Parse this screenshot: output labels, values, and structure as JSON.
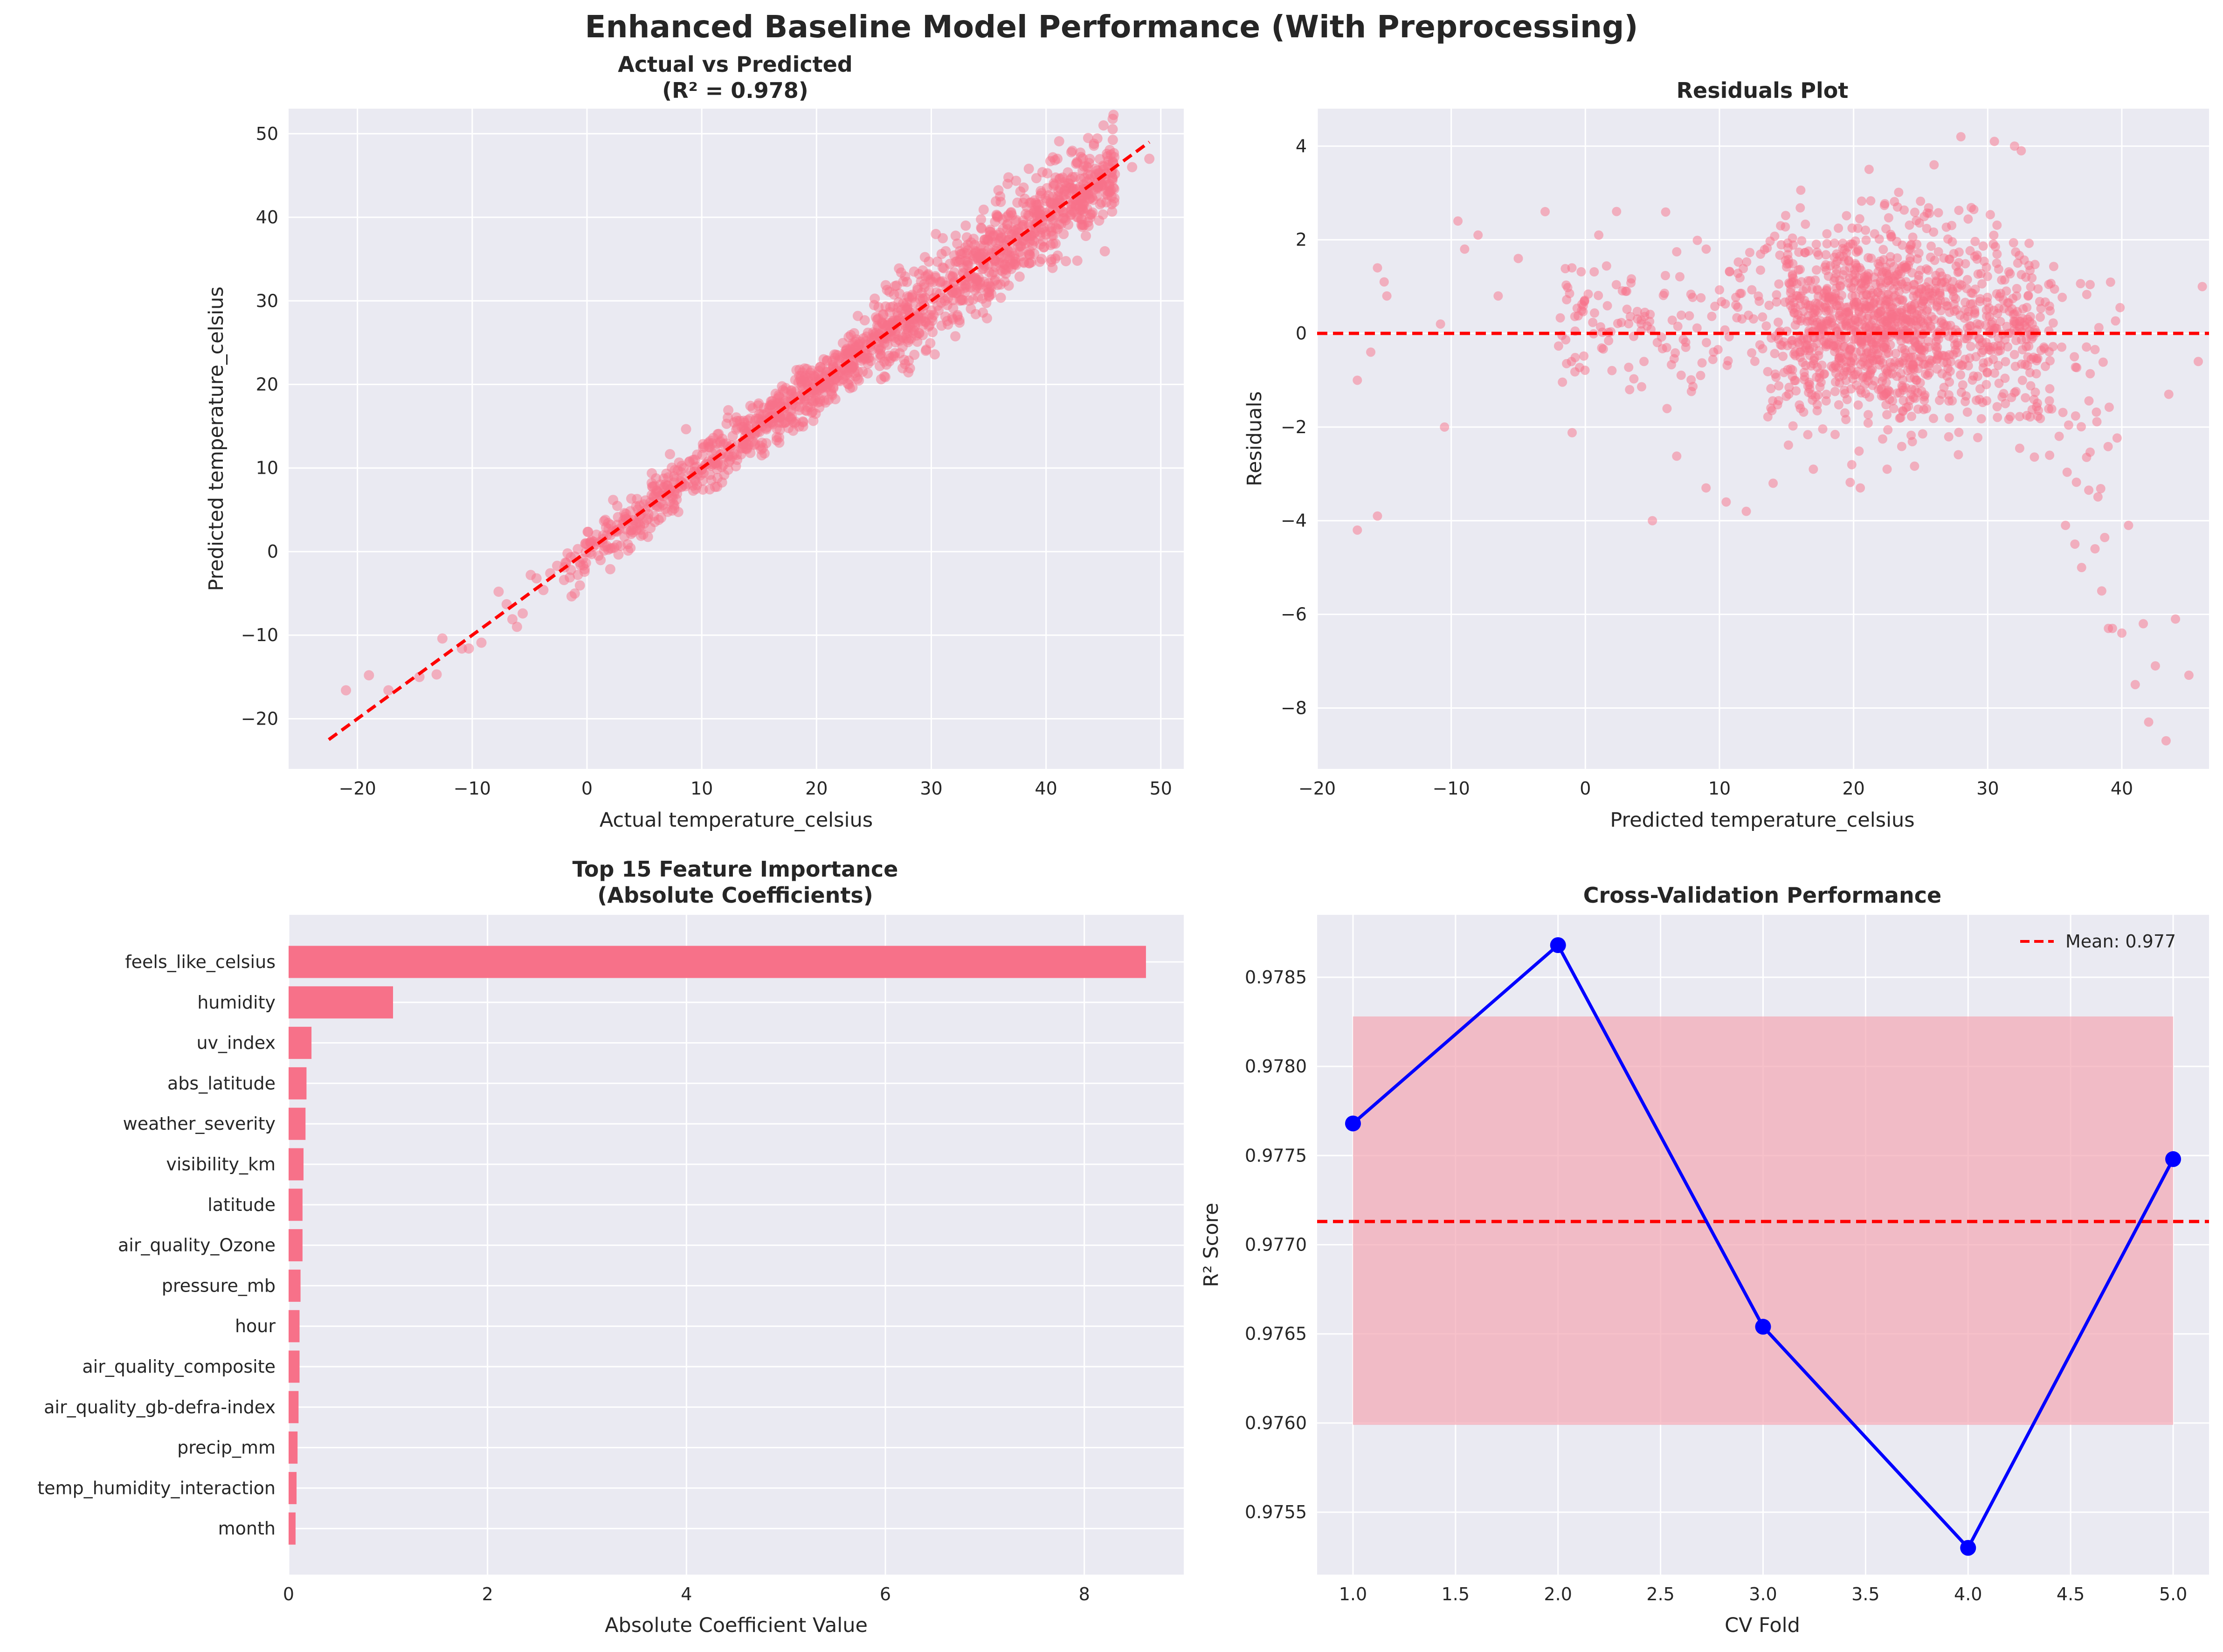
{
  "figure": {
    "suptitle": "Enhanced Baseline Model Performance (With Preprocessing)"
  },
  "colors": {
    "background": "#eaeaf2",
    "grid": "#ffffff",
    "points": "#f77189",
    "bars": "#f77189",
    "reference_line": "#ff0000",
    "cv_line": "#0000ff",
    "band": "#f4a7b4"
  },
  "chart_data": [
    {
      "id": "actual_vs_predicted",
      "type": "scatter",
      "title_line1": "Actual vs Predicted",
      "title_line2": "(R² = 0.978)",
      "xlabel": "Actual temperature_celsius",
      "ylabel": "Predicted temperature_celsius",
      "xlim": [
        -26,
        52
      ],
      "ylim": [
        -26,
        53
      ],
      "xticks": [
        -20,
        -10,
        0,
        10,
        20,
        30,
        40,
        50
      ],
      "yticks": [
        -20,
        -10,
        0,
        10,
        20,
        30,
        40,
        50
      ],
      "r2": 0.978,
      "reference_line": {
        "from": [
          -22.5,
          -22.5
        ],
        "to": [
          49,
          49
        ],
        "style": "dashed"
      },
      "points": [
        [
          -21,
          -16.6
        ],
        [
          -19,
          -14.8
        ],
        [
          -17.3,
          -16.6
        ],
        [
          -14.6,
          -15
        ],
        [
          -13.1,
          -14.7
        ],
        [
          -12.6,
          -10.4
        ],
        [
          -10.9,
          -11.6
        ],
        [
          -10.3,
          -11.6
        ],
        [
          -9.2,
          -10.9
        ],
        [
          -7.7,
          -4.8
        ],
        [
          -7,
          -6.3
        ],
        [
          -6.5,
          -8.1
        ],
        [
          -6.1,
          -9
        ],
        [
          -5.6,
          -7.4
        ],
        [
          -4.9,
          -2.8
        ],
        [
          -4.4,
          -3.2
        ],
        [
          -3.8,
          -4.6
        ],
        [
          -3.2,
          -2.6
        ],
        [
          -2.6,
          -1.7
        ],
        [
          -2,
          -3.4
        ],
        [
          -1.4,
          -2.2
        ],
        [
          -0.8,
          0.3
        ],
        [
          -0.2,
          -2.1
        ],
        [
          0.4,
          1.3
        ],
        [
          1,
          -0.5
        ],
        [
          1.6,
          3.8
        ],
        [
          2.2,
          2.4
        ],
        [
          2.8,
          2.7
        ],
        [
          3.4,
          4.5
        ],
        [
          4,
          2.3
        ],
        [
          4.6,
          5.5
        ],
        [
          5.2,
          3.8
        ],
        [
          5.8,
          6.6
        ],
        [
          6.4,
          5.8
        ],
        [
          7,
          7.9
        ],
        [
          7.6,
          6.9
        ],
        [
          8.2,
          9.5
        ],
        [
          8.8,
          8.1
        ],
        [
          9.4,
          11
        ],
        [
          10,
          9.8
        ],
        [
          10.6,
          12.5
        ],
        [
          11.2,
          10.6
        ],
        [
          11.8,
          13.5
        ],
        [
          12.4,
          12.3
        ],
        [
          13,
          14.6
        ],
        [
          13.6,
          13.2
        ],
        [
          14.2,
          15.9
        ],
        [
          14.8,
          14.9
        ],
        [
          15.4,
          17.2
        ],
        [
          16,
          15.5
        ],
        [
          16.6,
          18.3
        ],
        [
          17.2,
          17.3
        ],
        [
          17.8,
          19.2
        ],
        [
          18.4,
          18.1
        ],
        [
          19,
          20.3
        ],
        [
          19.6,
          19.4
        ],
        [
          20.2,
          21.6
        ],
        [
          20.8,
          20.3
        ],
        [
          21.4,
          22.8
        ],
        [
          22,
          21.5
        ],
        [
          22.6,
          24.1
        ],
        [
          23.2,
          22.6
        ],
        [
          23.8,
          25.1
        ],
        [
          24.4,
          23.6
        ],
        [
          25,
          26
        ],
        [
          25.6,
          24.3
        ],
        [
          26.2,
          27.4
        ],
        [
          26.8,
          25.6
        ],
        [
          27.4,
          28.9
        ],
        [
          28,
          26.5
        ],
        [
          28.6,
          29.8
        ],
        [
          29.2,
          27.6
        ],
        [
          29.8,
          31.2
        ],
        [
          30.2,
          28.3
        ],
        [
          30.8,
          32.3
        ],
        [
          31.4,
          29.5
        ],
        [
          32,
          33.4
        ],
        [
          32.6,
          30.1
        ],
        [
          33.2,
          34.6
        ],
        [
          33.8,
          31.3
        ],
        [
          34.4,
          35.7
        ],
        [
          35,
          32.1
        ],
        [
          35.6,
          37
        ],
        [
          36.2,
          33.5
        ],
        [
          36.8,
          38
        ],
        [
          37.4,
          34.3
        ],
        [
          38,
          39.6
        ],
        [
          38.6,
          35.5
        ],
        [
          39.2,
          40.7
        ],
        [
          39.8,
          36.4
        ],
        [
          40.4,
          41.8
        ],
        [
          41,
          38.6
        ],
        [
          41.6,
          43.2
        ],
        [
          42.2,
          40.9
        ],
        [
          43,
          44.6
        ],
        [
          44,
          42.4
        ],
        [
          45,
          45.7
        ],
        [
          47.5,
          46
        ],
        [
          49,
          47
        ],
        [
          31,
          37.5
        ],
        [
          33,
          39
        ],
        [
          36,
          42.5
        ],
        [
          38.5,
          45.8
        ],
        [
          28.5,
          33.5
        ],
        [
          34.5,
          28.6
        ],
        [
          27.5,
          24.5
        ]
      ],
      "cloud": [
        -2,
        46,
        2.2
      ]
    },
    {
      "id": "residuals",
      "type": "scatter",
      "title_line1": "Residuals Plot",
      "xlabel": "Predicted temperature_celsius",
      "ylabel": "Residuals",
      "xlim": [
        -20,
        46.5
      ],
      "ylim": [
        -9.3,
        4.8
      ],
      "xticks": [
        -20,
        -10,
        0,
        10,
        20,
        30,
        40
      ],
      "yticks": [
        -8,
        -6,
        -4,
        -2,
        0,
        2,
        4
      ],
      "reference_line": {
        "y": 0,
        "style": "dashed"
      },
      "points": [
        [
          -17,
          -4.2
        ],
        [
          -15.5,
          -3.9
        ],
        [
          -17,
          -1
        ],
        [
          -16,
          -0.4
        ],
        [
          -15.5,
          1.4
        ],
        [
          -15,
          1.1
        ],
        [
          -14.8,
          0.8
        ],
        [
          -10.5,
          -2
        ],
        [
          -10.8,
          0.2
        ],
        [
          -9.5,
          2.4
        ],
        [
          -8,
          2.1
        ],
        [
          -9,
          1.8
        ],
        [
          -6.5,
          0.8
        ],
        [
          -5,
          1.6
        ],
        [
          -3,
          2.6
        ],
        [
          -1,
          1.4
        ],
        [
          1,
          2.1
        ],
        [
          3,
          0.9
        ],
        [
          5,
          -4
        ],
        [
          9,
          -3.3
        ],
        [
          10.5,
          -3.6
        ],
        [
          12,
          -3.8
        ],
        [
          14,
          -3.2
        ],
        [
          17,
          -2.9
        ],
        [
          20.5,
          -3.3
        ],
        [
          22.5,
          -2.9
        ],
        [
          26,
          3.6
        ],
        [
          28,
          4.2
        ],
        [
          30.5,
          4.1
        ],
        [
          32,
          4.0
        ],
        [
          32.5,
          3.9
        ],
        [
          35.8,
          -4.1
        ],
        [
          36.5,
          -4.5
        ],
        [
          37,
          -5.0
        ],
        [
          38,
          -4.6
        ],
        [
          38.5,
          -5.5
        ],
        [
          39,
          -6.3
        ],
        [
          39.3,
          -6.3
        ],
        [
          40,
          -6.4
        ],
        [
          40.5,
          -4.1
        ],
        [
          41,
          -7.5
        ],
        [
          41.6,
          -6.2
        ],
        [
          42,
          -8.3
        ],
        [
          42.5,
          -7.1
        ],
        [
          43.3,
          -8.7
        ],
        [
          44,
          -6.1
        ],
        [
          45,
          -7.3
        ],
        [
          45.7,
          -0.6
        ],
        [
          46,
          1.0
        ],
        [
          43.5,
          -1.3
        ]
      ]
    },
    {
      "id": "feature_importance",
      "type": "bar",
      "orientation": "horizontal",
      "title_line1": "Top 15 Feature Importance",
      "title_line2": "(Absolute Coefficients)",
      "xlabel": "Absolute Coefficient Value",
      "xlim": [
        0,
        9
      ],
      "xticks": [
        0,
        2,
        4,
        6,
        8
      ],
      "categories": [
        "feels_like_celsius",
        "humidity",
        "uv_index",
        "abs_latitude",
        "weather_severity",
        "visibility_km",
        "latitude",
        "air_quality_Ozone",
        "pressure_mb",
        "hour",
        "air_quality_composite",
        "air_quality_gb-defra-index",
        "precip_mm",
        "temp_humidity_interaction",
        "month"
      ],
      "values": [
        8.62,
        1.05,
        0.23,
        0.18,
        0.17,
        0.15,
        0.14,
        0.14,
        0.12,
        0.11,
        0.11,
        0.1,
        0.09,
        0.08,
        0.07
      ]
    },
    {
      "id": "cross_validation",
      "type": "line",
      "title_line1": "Cross-Validation Performance",
      "xlabel": "CV Fold",
      "ylabel": "R² Score",
      "xlim": [
        0.825,
        5.175
      ],
      "ylim": [
        0.97515,
        0.97885
      ],
      "xticks": [
        1.0,
        1.5,
        2.0,
        2.5,
        3.0,
        3.5,
        4.0,
        4.5,
        5.0
      ],
      "yticks": [
        0.9755,
        0.976,
        0.9765,
        0.977,
        0.9775,
        0.978,
        0.9785
      ],
      "x": [
        1,
        2,
        3,
        4,
        5
      ],
      "values": [
        0.97768,
        0.97868,
        0.97654,
        0.9753,
        0.97748
      ],
      "mean": 0.97713,
      "band": [
        0.97599,
        0.97828
      ],
      "legend": {
        "label": "Mean: 0.977",
        "placement": "upper right"
      }
    }
  ]
}
